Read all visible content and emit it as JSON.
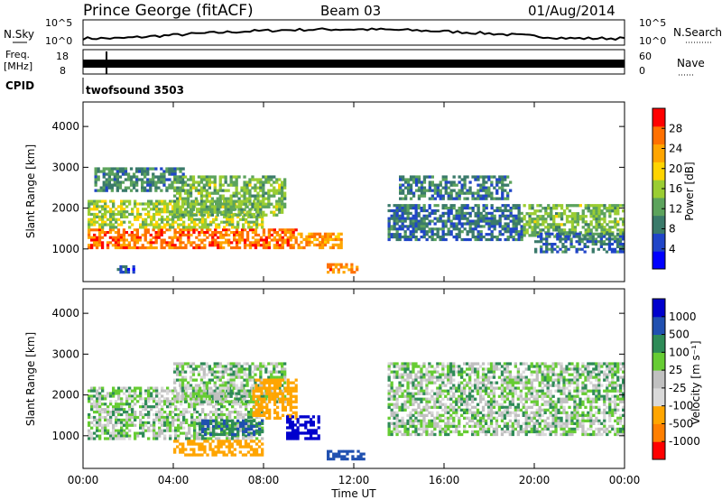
{
  "header": {
    "station": "Prince George (fitACF)",
    "beam": "Beam 03",
    "date": "01/Aug/2014"
  },
  "left_labels": {
    "nsky": "N.Sky",
    "freq": "Freq.",
    "freq_unit": "[MHz]",
    "cpid": "CPID"
  },
  "right_labels": {
    "nsearch": "N.Search",
    "nave": "Nave"
  },
  "strip_ticks": {
    "noise_left": [
      "10^5",
      "10^0"
    ],
    "noise_right": [
      "10^5",
      "10^0"
    ],
    "freq_left": [
      "18",
      "8"
    ],
    "freq_right": [
      "60",
      "0"
    ]
  },
  "cpid_name": "twofsound 3503",
  "colors": {
    "power": [
      "#0000ff",
      "#2045c8",
      "#3a7a6a",
      "#5ca35c",
      "#9acd32",
      "#ffd400",
      "#ffa500",
      "#ff7000",
      "#ff0000"
    ],
    "velocity": [
      "#ff0000",
      "#ff7f00",
      "#ffa500",
      "#d9d9d9",
      "#c0c0c0",
      "#66cc33",
      "#2e8b57",
      "#2050b0",
      "#0000cd"
    ]
  },
  "chart_data": [
    {
      "type": "heatmap",
      "title": "Power",
      "ylabel": "Slant Range [km]",
      "yticks": [
        "1000",
        "2000",
        "3000",
        "4000"
      ],
      "ylim": [
        200,
        4600
      ],
      "xlim": [
        0,
        24
      ],
      "colorbar": {
        "label": "Power [dB]",
        "ticks": [
          "4",
          "8",
          "12",
          "16",
          "20",
          "24",
          "28"
        ],
        "range": [
          0,
          32
        ]
      },
      "features": [
        {
          "t0": 0.2,
          "t1": 9.5,
          "r0": 1000,
          "r1": 1500,
          "level": 26
        },
        {
          "t0": 0.2,
          "t1": 8.0,
          "r0": 1500,
          "r1": 2200,
          "level": 16
        },
        {
          "t0": 4.0,
          "t1": 9.0,
          "r0": 1800,
          "r1": 2800,
          "level": 14
        },
        {
          "t0": 0.5,
          "t1": 4.5,
          "r0": 2400,
          "r1": 3000,
          "level": 10
        },
        {
          "t0": 9.5,
          "t1": 11.5,
          "r0": 1000,
          "r1": 1400,
          "level": 24
        },
        {
          "t0": 10.8,
          "t1": 12.2,
          "r0": 400,
          "r1": 650,
          "level": 26
        },
        {
          "t0": 13.5,
          "t1": 19.5,
          "r0": 1200,
          "r1": 2100,
          "level": 8
        },
        {
          "t0": 14.0,
          "t1": 19.0,
          "r0": 2200,
          "r1": 2800,
          "level": 9
        },
        {
          "t0": 19.5,
          "t1": 24.0,
          "r0": 1300,
          "r1": 2100,
          "level": 14
        },
        {
          "t0": 20.0,
          "t1": 24.0,
          "r0": 900,
          "r1": 1400,
          "level": 8
        },
        {
          "t0": 1.5,
          "t1": 2.3,
          "r0": 400,
          "r1": 600,
          "level": 6
        }
      ]
    },
    {
      "type": "heatmap",
      "title": "Velocity",
      "ylabel": "Slant Range [km]",
      "yticks": [
        "1000",
        "2000",
        "3000",
        "4000"
      ],
      "ylim": [
        200,
        4600
      ],
      "xlim": [
        0,
        24
      ],
      "colorbar": {
        "label": "Velocity [m s⁻¹]",
        "ticks": [
          "1000",
          "500",
          "100",
          "25",
          "-25",
          "-100",
          "-500",
          "-1000"
        ]
      },
      "features": [
        {
          "t0": 0.2,
          "t1": 8.0,
          "r0": 900,
          "r1": 2200,
          "v": 0
        },
        {
          "t0": 4.0,
          "t1": 9.0,
          "r0": 1800,
          "r1": 2800,
          "v": 0
        },
        {
          "t0": 7.5,
          "t1": 9.5,
          "r0": 1400,
          "r1": 2400,
          "v": -400
        },
        {
          "t0": 9.0,
          "t1": 10.5,
          "r0": 900,
          "r1": 1500,
          "v": 700
        },
        {
          "t0": 5.0,
          "t1": 8.0,
          "r0": 1000,
          "r1": 1400,
          "v": 100
        },
        {
          "t0": 4.0,
          "t1": 8.0,
          "r0": 500,
          "r1": 900,
          "v": -200
        },
        {
          "t0": 10.8,
          "t1": 12.5,
          "r0": 400,
          "r1": 650,
          "v": 150
        },
        {
          "t0": 13.5,
          "t1": 24.0,
          "r0": 1000,
          "r1": 2800,
          "v": 0
        }
      ]
    }
  ],
  "xaxis": {
    "label": "Time UT",
    "ticks": [
      "00:00",
      "04:00",
      "08:00",
      "12:00",
      "16:00",
      "20:00",
      "00:00"
    ]
  }
}
